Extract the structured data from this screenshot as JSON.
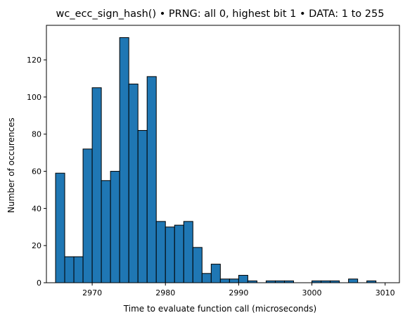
{
  "chart_data": {
    "type": "bar",
    "title": "wc_ecc_sign_hash() • PRNG: all 0, highest bit 1 • DATA: 1 to 255",
    "xlabel": "Time to evaluate function call (microseconds)",
    "ylabel": "Number of occurences",
    "xlim": [
      2963.75,
      3011.95
    ],
    "ylim": [
      0,
      138.6
    ],
    "bin_start": 2965.0,
    "bin_width": 1.25,
    "values": [
      59,
      14,
      14,
      72,
      105,
      55,
      60,
      132,
      107,
      82,
      111,
      33,
      30,
      31,
      33,
      19,
      5,
      10,
      2,
      2,
      4,
      1,
      0,
      1,
      1,
      1,
      0,
      0,
      1,
      1,
      1,
      0,
      2,
      0,
      1
    ],
    "xticks": [
      2970,
      2980,
      2990,
      3000,
      3010
    ],
    "yticks": [
      0,
      20,
      40,
      60,
      80,
      100,
      120
    ],
    "bar_color": "#1f77b4",
    "edge_color": "#000000",
    "grid": false,
    "legend": "none"
  }
}
